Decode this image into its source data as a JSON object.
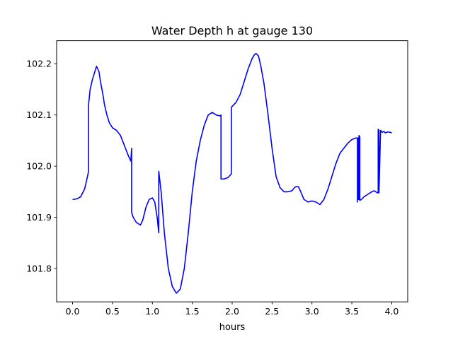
{
  "chart_data": {
    "type": "line",
    "title": "Water Depth h at gauge 130",
    "xlabel": "hours",
    "ylabel": "",
    "xlim": [
      -0.2,
      4.2
    ],
    "ylim": [
      101.735,
      102.245
    ],
    "x_ticks": [
      0.0,
      0.5,
      1.0,
      1.5,
      2.0,
      2.5,
      3.0,
      3.5,
      4.0
    ],
    "x_tick_labels": [
      "0.0",
      "0.5",
      "1.0",
      "1.5",
      "2.0",
      "2.5",
      "3.0",
      "3.5",
      "4.0"
    ],
    "y_ticks": [
      101.8,
      101.9,
      102.0,
      102.1,
      102.2
    ],
    "y_tick_labels": [
      "101.8",
      "101.9",
      "102.0",
      "102.1",
      "102.2"
    ],
    "grid": false,
    "legend": null,
    "colors": {
      "line": "#0000ff",
      "axes": "#000000",
      "background": "#ffffff"
    },
    "series": [
      {
        "x": [
          0.0,
          0.05,
          0.1,
          0.15,
          0.18,
          0.2,
          0.2,
          0.22,
          0.25,
          0.28,
          0.3,
          0.33,
          0.35,
          0.38,
          0.4,
          0.43,
          0.46,
          0.5,
          0.55,
          0.6,
          0.65,
          0.7,
          0.73,
          0.74,
          0.74,
          0.76,
          0.8,
          0.85,
          0.88,
          0.92,
          0.96,
          1.0,
          1.03,
          1.06,
          1.08,
          1.08,
          1.11,
          1.15,
          1.2,
          1.25,
          1.3,
          1.35,
          1.4,
          1.45,
          1.5,
          1.55,
          1.6,
          1.65,
          1.7,
          1.75,
          1.8,
          1.85,
          1.86,
          1.86,
          1.9,
          1.95,
          1.99,
          1.99,
          2.05,
          2.1,
          2.15,
          2.2,
          2.25,
          2.28,
          2.3,
          2.33,
          2.36,
          2.4,
          2.45,
          2.5,
          2.55,
          2.6,
          2.65,
          2.7,
          2.75,
          2.78,
          2.8,
          2.83,
          2.86,
          2.9,
          2.95,
          3.0,
          3.05,
          3.1,
          3.15,
          3.2,
          3.25,
          3.3,
          3.35,
          3.4,
          3.45,
          3.5,
          3.55,
          3.57,
          3.57,
          3.58,
          3.58,
          3.59,
          3.59,
          3.6,
          3.6,
          3.62,
          3.65,
          3.7,
          3.75,
          3.78,
          3.8,
          3.82,
          3.83,
          3.83,
          3.84,
          3.84,
          3.86,
          3.88,
          3.9,
          3.92,
          3.95,
          3.98,
          4.0
        ],
        "y": [
          101.935,
          101.936,
          101.94,
          101.955,
          101.975,
          101.99,
          102.12,
          102.15,
          102.17,
          102.185,
          102.195,
          102.185,
          102.165,
          102.14,
          102.12,
          102.1,
          102.085,
          102.075,
          102.07,
          102.06,
          102.04,
          102.02,
          102.01,
          102.035,
          101.91,
          101.9,
          101.89,
          101.885,
          101.895,
          101.92,
          101.935,
          101.938,
          101.93,
          101.9,
          101.87,
          101.99,
          101.95,
          101.87,
          101.8,
          101.765,
          101.752,
          101.76,
          101.8,
          101.87,
          101.95,
          102.01,
          102.05,
          102.08,
          102.1,
          102.105,
          102.1,
          102.098,
          102.1,
          101.975,
          101.975,
          101.978,
          101.985,
          102.115,
          102.125,
          102.14,
          102.165,
          102.19,
          102.21,
          102.218,
          102.22,
          102.215,
          102.195,
          102.16,
          102.1,
          102.035,
          101.98,
          101.958,
          101.95,
          101.95,
          101.952,
          101.958,
          101.96,
          101.96,
          101.95,
          101.935,
          101.93,
          101.932,
          101.93,
          101.925,
          101.935,
          101.955,
          101.98,
          102.005,
          102.025,
          102.035,
          102.045,
          102.052,
          102.055,
          102.055,
          101.93,
          102.055,
          101.935,
          102.06,
          101.935,
          102.058,
          101.933,
          101.935,
          101.94,
          101.945,
          101.95,
          101.952,
          101.95,
          101.948,
          101.948,
          102.072,
          102.07,
          101.948,
          102.07,
          102.066,
          102.068,
          102.065,
          102.067,
          102.066,
          102.065
        ]
      }
    ]
  }
}
